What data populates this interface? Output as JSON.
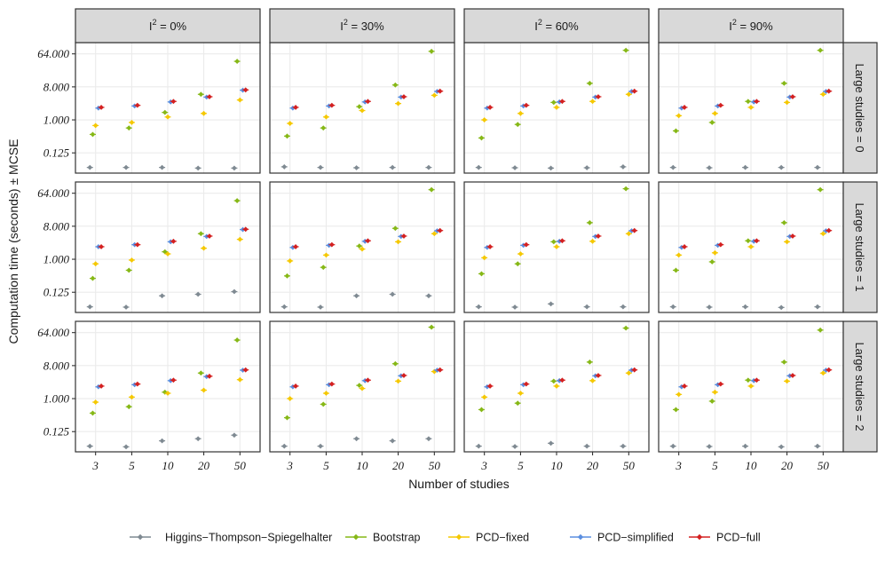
{
  "chart_data": {
    "type": "scatter",
    "ylabel": "Computation time (seconds) ± MCSE",
    "xlabel": "Number of studies",
    "y_scale": "log2",
    "ylim": [
      0.035,
      130
    ],
    "y_ticks": [
      0.125,
      1.0,
      8.0,
      64.0
    ],
    "y_tick_labels": [
      "0.125",
      "1.000",
      "8.000",
      "64.000"
    ],
    "x_categories": [
      "3",
      "5",
      "10",
      "20",
      "50"
    ],
    "col_facets": [
      {
        "prefix": "I",
        "sup": "2",
        "suffix": " = 0%"
      },
      {
        "prefix": "I",
        "sup": "2",
        "suffix": " = 30%"
      },
      {
        "prefix": "I",
        "sup": "2",
        "suffix": " = 60%"
      },
      {
        "prefix": "I",
        "sup": "2",
        "suffix": " = 90%"
      }
    ],
    "row_facets": [
      "Large studies = 0",
      "Large studies = 1",
      "Large studies = 2"
    ],
    "series": [
      {
        "name": "Higgins−Thompson−Spiegelhalter",
        "color": "#7f8a92",
        "offset": -2
      },
      {
        "name": "Bootstrap",
        "color": "#86b817",
        "offset": -1
      },
      {
        "name": "PCD−fixed",
        "color": "#f5c800",
        "offset": 0
      },
      {
        "name": "PCD−simplified",
        "color": "#5b8fe0",
        "offset": 1
      },
      {
        "name": "PCD−full",
        "color": "#d42020",
        "offset": 2
      }
    ],
    "legend_position": "bottom",
    "grid": true,
    "panels": [
      [
        {
          "HTS": [
            0.05,
            0.05,
            0.05,
            0.048,
            0.048
          ],
          "Bootstrap": [
            0.4,
            0.6,
            1.6,
            5.0,
            40
          ],
          "PCD-fixed": [
            0.7,
            0.85,
            1.2,
            1.5,
            3.5
          ],
          "PCD-simplified": [
            2.1,
            2.4,
            3.1,
            4.2,
            6.5
          ],
          "PCD-full": [
            2.2,
            2.5,
            3.2,
            4.3,
            6.6
          ]
        },
        {
          "HTS": [
            0.052,
            0.05,
            0.049,
            0.05,
            0.05
          ],
          "Bootstrap": [
            0.36,
            0.6,
            2.3,
            9.0,
            75
          ],
          "PCD-fixed": [
            0.8,
            1.2,
            1.8,
            2.8,
            4.7
          ],
          "PCD-simplified": [
            2.1,
            2.4,
            3.1,
            4.2,
            6.0
          ],
          "PCD-full": [
            2.2,
            2.5,
            3.2,
            4.3,
            6.1
          ]
        },
        {
          "HTS": [
            0.05,
            0.049,
            0.048,
            0.049,
            0.052
          ],
          "Bootstrap": [
            0.32,
            0.75,
            3.0,
            10.0,
            80
          ],
          "PCD-fixed": [
            1.0,
            1.5,
            2.2,
            3.2,
            5.0
          ],
          "PCD-simplified": [
            2.1,
            2.4,
            3.1,
            4.2,
            6.0
          ],
          "PCD-full": [
            2.2,
            2.5,
            3.2,
            4.3,
            6.1
          ]
        },
        {
          "HTS": [
            0.05,
            0.049,
            0.05,
            0.05,
            0.05
          ],
          "Bootstrap": [
            0.5,
            0.85,
            3.2,
            10.0,
            80
          ],
          "PCD-fixed": [
            1.3,
            1.5,
            2.2,
            3.0,
            5.0
          ],
          "PCD-simplified": [
            2.1,
            2.4,
            3.1,
            4.2,
            6.0
          ],
          "PCD-full": [
            2.2,
            2.5,
            3.2,
            4.3,
            6.1
          ]
        }
      ],
      [
        {
          "HTS": [
            0.05,
            0.049,
            0.1,
            0.11,
            0.13
          ],
          "Bootstrap": [
            0.3,
            0.5,
            1.6,
            5.0,
            40
          ],
          "PCD-fixed": [
            0.75,
            0.95,
            1.4,
            2.0,
            3.5
          ],
          "PCD-simplified": [
            2.2,
            2.5,
            3.0,
            4.2,
            6.5
          ],
          "PCD-full": [
            2.2,
            2.5,
            3.1,
            4.3,
            6.6
          ]
        },
        {
          "HTS": [
            0.05,
            0.049,
            0.1,
            0.11,
            0.1
          ],
          "Bootstrap": [
            0.35,
            0.6,
            2.3,
            7.0,
            80
          ],
          "PCD-fixed": [
            0.9,
            1.3,
            1.9,
            3.0,
            5.0
          ],
          "PCD-simplified": [
            2.1,
            2.4,
            3.1,
            4.2,
            6.0
          ],
          "PCD-full": [
            2.2,
            2.5,
            3.2,
            4.3,
            6.1
          ]
        },
        {
          "HTS": [
            0.05,
            0.049,
            0.06,
            0.05,
            0.05
          ],
          "Bootstrap": [
            0.4,
            0.75,
            3.0,
            10.0,
            85
          ],
          "PCD-fixed": [
            1.1,
            1.4,
            2.2,
            3.1,
            5.0
          ],
          "PCD-simplified": [
            2.1,
            2.4,
            3.1,
            4.2,
            6.0
          ],
          "PCD-full": [
            2.2,
            2.5,
            3.2,
            4.3,
            6.1
          ]
        },
        {
          "HTS": [
            0.05,
            0.049,
            0.05,
            0.048,
            0.05
          ],
          "Bootstrap": [
            0.5,
            0.85,
            3.2,
            10.0,
            80
          ],
          "PCD-fixed": [
            1.3,
            1.5,
            2.2,
            3.0,
            5.0
          ],
          "PCD-simplified": [
            2.1,
            2.4,
            3.1,
            4.2,
            6.0
          ],
          "PCD-full": [
            2.2,
            2.5,
            3.2,
            4.3,
            6.1
          ]
        }
      ],
      [
        {
          "HTS": [
            0.05,
            0.048,
            0.07,
            0.08,
            0.1
          ],
          "Bootstrap": [
            0.4,
            0.6,
            1.5,
            5.0,
            40
          ],
          "PCD-fixed": [
            0.8,
            1.1,
            1.4,
            1.7,
            3.3
          ],
          "PCD-simplified": [
            2.1,
            2.4,
            3.1,
            4.0,
            6.0
          ],
          "PCD-full": [
            2.2,
            2.5,
            3.2,
            4.1,
            6.1
          ]
        },
        {
          "HTS": [
            0.05,
            0.05,
            0.08,
            0.07,
            0.08
          ],
          "Bootstrap": [
            0.3,
            0.7,
            2.3,
            9.0,
            90
          ],
          "PCD-fixed": [
            1.0,
            1.4,
            1.9,
            3.0,
            5.5
          ],
          "PCD-simplified": [
            2.1,
            2.4,
            3.1,
            4.2,
            6.0
          ],
          "PCD-full": [
            2.2,
            2.5,
            3.2,
            4.3,
            6.1
          ]
        },
        {
          "HTS": [
            0.05,
            0.049,
            0.06,
            0.05,
            0.05
          ],
          "Bootstrap": [
            0.5,
            0.75,
            3.0,
            10.0,
            85
          ],
          "PCD-fixed": [
            1.1,
            1.4,
            2.2,
            3.1,
            5.0
          ],
          "PCD-simplified": [
            2.1,
            2.4,
            3.1,
            4.2,
            6.0
          ],
          "PCD-full": [
            2.2,
            2.5,
            3.2,
            4.3,
            6.1
          ]
        },
        {
          "HTS": [
            0.05,
            0.049,
            0.05,
            0.048,
            0.05
          ],
          "Bootstrap": [
            0.5,
            0.85,
            3.2,
            10.0,
            75
          ],
          "PCD-fixed": [
            1.3,
            1.5,
            2.2,
            3.0,
            5.0
          ],
          "PCD-simplified": [
            2.1,
            2.4,
            3.1,
            4.2,
            6.0
          ],
          "PCD-full": [
            2.2,
            2.5,
            3.2,
            4.3,
            6.1
          ]
        }
      ]
    ]
  }
}
